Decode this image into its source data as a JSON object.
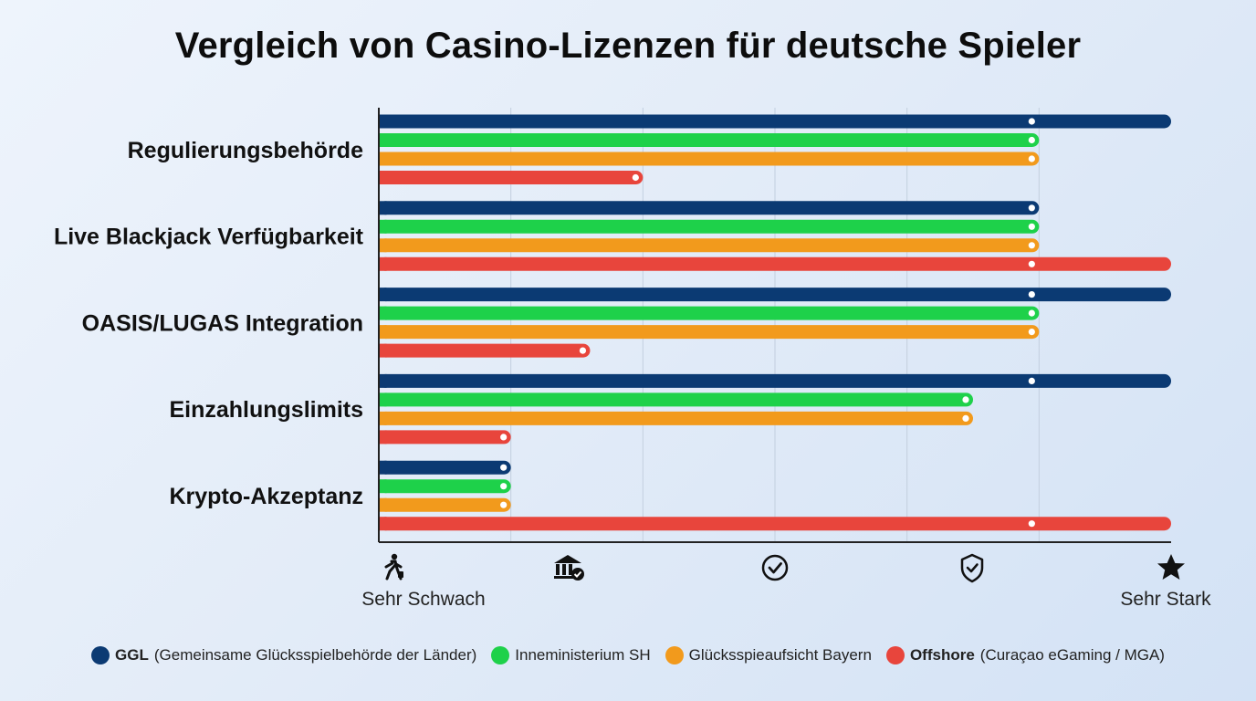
{
  "chart_data": {
    "type": "bar",
    "orientation": "horizontal",
    "title": "Vergleich von Casino-Lizenzen für deutsche Spieler",
    "categories": [
      "Regulierungsbehörde",
      "Live Blackjack Verfügbarkeit",
      "OASIS/LUGAS Integration",
      "Einzahlungslimits",
      "Krypto-Akzeptanz"
    ],
    "xlim": [
      0,
      6
    ],
    "grid": true,
    "scale_labels": {
      "min": "Sehr Schwach",
      "max": "Sehr Stark"
    },
    "scale_icons": [
      "person-walking-icon",
      "bank-icon",
      "check-circle-icon",
      "shield-check-icon",
      "star-icon"
    ],
    "legend_position": "bottom",
    "series": [
      {
        "name": "GGL",
        "detail": "(Gemeinsame Glücksspielbehörde der Länder)",
        "color": "#0b3a73",
        "values": [
          6,
          5,
          6,
          6,
          1
        ]
      },
      {
        "name": "Inneministerium SH",
        "detail": "",
        "color": "#1ed14a",
        "values": [
          5,
          5,
          5,
          4.5,
          1
        ]
      },
      {
        "name": "Glücksspieaufsicht Bayern",
        "detail": "",
        "color": "#f29a1c",
        "values": [
          5,
          5,
          5,
          4.5,
          1
        ]
      },
      {
        "name": "Offshore",
        "detail": "(Curaçao eGaming / MGA)",
        "color": "#e8453c",
        "values": [
          2,
          6,
          1.6,
          1,
          6
        ]
      }
    ]
  }
}
